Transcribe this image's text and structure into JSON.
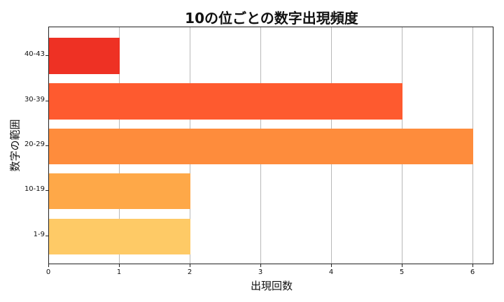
{
  "chart_data": {
    "type": "bar",
    "orientation": "horizontal",
    "title": "10の位ごとの数字出現頻度",
    "xlabel": "出現回数",
    "ylabel": "数字の範囲",
    "categories": [
      "40-43",
      "30-39",
      "20-29",
      "10-19",
      "1-9"
    ],
    "values": [
      1,
      5,
      6,
      2,
      2
    ],
    "colors": [
      "#EE3124",
      "#FE5A2F",
      "#FE8C3C",
      "#FEA848",
      "#FECA66"
    ],
    "xlim": [
      0,
      6.3
    ],
    "xticks": [
      "0",
      "1",
      "2",
      "3",
      "4",
      "5",
      "6"
    ],
    "grid": "x-axis vertical lines",
    "legend": null
  }
}
